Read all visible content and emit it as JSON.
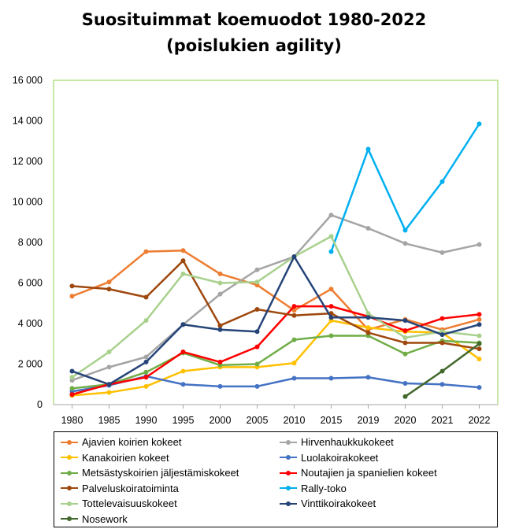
{
  "chart_data": {
    "type": "line",
    "title_line1": "Suosituimmat koemuodot 1980-2022",
    "title_line2": "(poislukien agility)",
    "categories": [
      "1980",
      "1985",
      "1990",
      "1995",
      "2000",
      "2005",
      "2010",
      "2015",
      "2019",
      "2020",
      "2021",
      "2022"
    ],
    "ylim": [
      0,
      16000
    ],
    "yticks": [
      "0",
      "2 000",
      "4 000",
      "6 000",
      "8 000",
      "10 000",
      "12 000",
      "14 000",
      "16 000"
    ],
    "ytick_values": [
      0,
      2000,
      4000,
      6000,
      8000,
      10000,
      12000,
      14000,
      16000
    ],
    "grid": false,
    "legend_position": "bottom",
    "series": [
      {
        "name": "Ajavien koirien kokeet",
        "color": "#ED7D31",
        "values": [
          5350,
          6050,
          7550,
          7600,
          6450,
          5900,
          4650,
          5700,
          3700,
          4200,
          3700,
          4200
        ]
      },
      {
        "name": "Hirvenhaukkukokeet",
        "color": "#A5A5A5",
        "values": [
          1200,
          1850,
          2350,
          3950,
          5450,
          6650,
          7300,
          9350,
          8700,
          7950,
          7500,
          7900
        ]
      },
      {
        "name": "Kanakoirien kokeet",
        "color": "#FFC000",
        "values": [
          450,
          600,
          900,
          1650,
          1850,
          1850,
          2050,
          4150,
          3800,
          3600,
          3550,
          2250
        ]
      },
      {
        "name": "Luolakoirakokeet",
        "color": "#4472C4",
        "values": [
          650,
          950,
          1400,
          1000,
          900,
          900,
          1300,
          1300,
          1350,
          1050,
          1000,
          850
        ]
      },
      {
        "name": "Metsästyskoirien jäljestämiskokeet",
        "color": "#70AD47",
        "values": [
          800,
          1000,
          1600,
          2550,
          1950,
          2000,
          3200,
          3400,
          3400,
          2500,
          3150,
          3050
        ]
      },
      {
        "name": "Noutajien ja spanielien kokeet",
        "color": "#FF0000",
        "values": [
          500,
          1000,
          1350,
          2600,
          2100,
          2850,
          4850,
          4850,
          4350,
          3650,
          4250,
          4450
        ]
      },
      {
        "name": "Palveluskoiratoiminta",
        "color": "#9E480E",
        "values": [
          5850,
          5700,
          5300,
          7100,
          3900,
          4700,
          4400,
          4500,
          3550,
          3050,
          3050,
          2750
        ]
      },
      {
        "name": "Rally-toko",
        "color": "#00B0F0",
        "values": [
          null,
          null,
          null,
          null,
          null,
          null,
          null,
          7550,
          12600,
          8600,
          11000,
          13850
        ]
      },
      {
        "name": "Tottelevaisuuskokeet",
        "color": "#A9D18E",
        "values": [
          1350,
          2600,
          4150,
          6450,
          6000,
          6050,
          7300,
          8300,
          4500,
          3300,
          3600,
          3400
        ]
      },
      {
        "name": "Vinttikoirakokeet",
        "color": "#264478",
        "values": [
          1650,
          1000,
          2100,
          3950,
          3700,
          3600,
          7300,
          4300,
          4300,
          4150,
          3450,
          3950
        ]
      },
      {
        "name": "Nosework",
        "color": "#43682B",
        "values": [
          null,
          null,
          null,
          null,
          null,
          null,
          null,
          null,
          null,
          400,
          1650,
          3000
        ]
      }
    ]
  }
}
